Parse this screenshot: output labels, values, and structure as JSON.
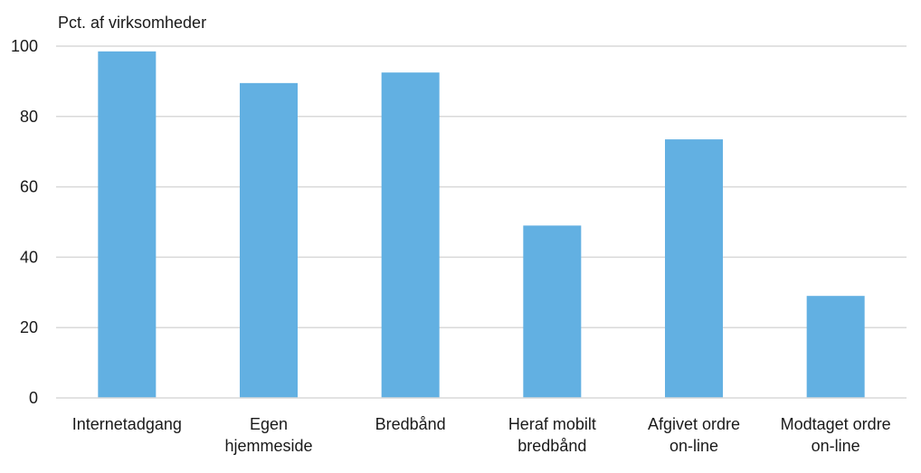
{
  "chart_data": {
    "type": "bar",
    "title": "",
    "ylabel": "Pct. af virksomheder",
    "xlabel": "",
    "ylim": [
      0,
      100
    ],
    "yticks": [
      "0",
      "20",
      "40",
      "60",
      "80",
      "100"
    ],
    "grid": true,
    "bar_color": "#62b0e2",
    "grid_color": "#d9d9d9",
    "categories": [
      [
        "Internetadgang"
      ],
      [
        "Egen",
        "hjemmeside"
      ],
      [
        "Bredbånd"
      ],
      [
        "Heraf mobilt",
        "bredbånd"
      ],
      [
        "Afgivet ordre",
        "on-line"
      ],
      [
        "Modtaget ordre",
        "on-line"
      ]
    ],
    "values": [
      98.5,
      89.5,
      92.5,
      49,
      73.5,
      29
    ]
  }
}
